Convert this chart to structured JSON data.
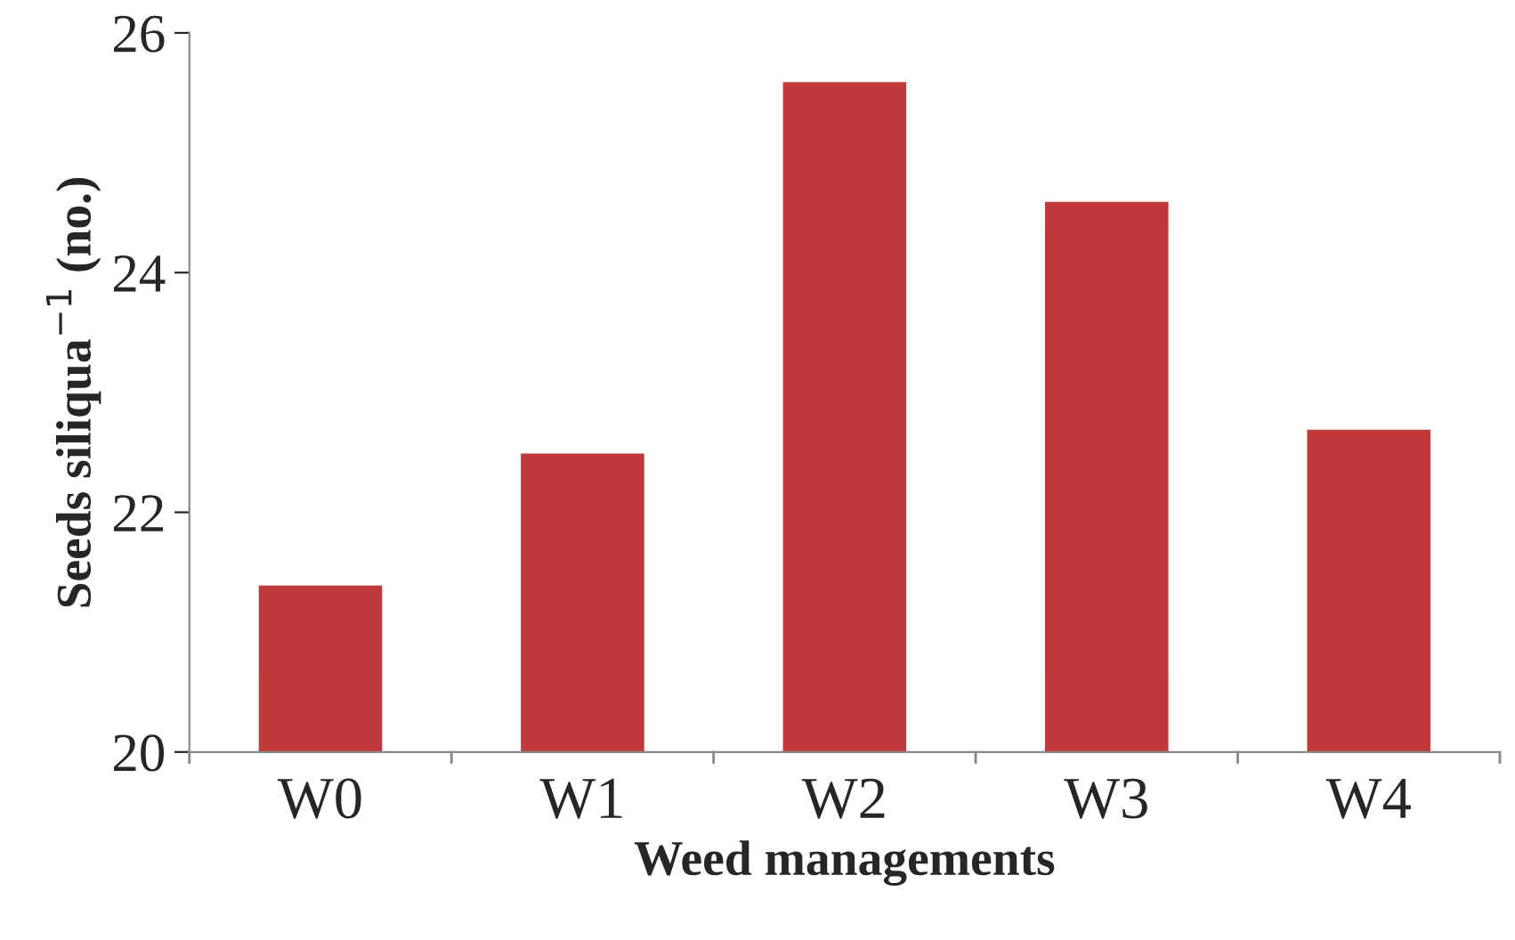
{
  "chart_data": {
    "type": "bar",
    "xlabel": "Weed managements",
    "ylabel": "Seeds siliqua$^{−1}$ (no.)",
    "categories": [
      "W0",
      "W1",
      "W2",
      "W3",
      "W4"
    ],
    "values": [
      21.4,
      22.5,
      25.6,
      24.6,
      22.7
    ],
    "color": "#c0393b",
    "ylim": [
      20,
      26
    ],
    "yticks": [
      20,
      22,
      24,
      26
    ],
    "grid": false
  }
}
